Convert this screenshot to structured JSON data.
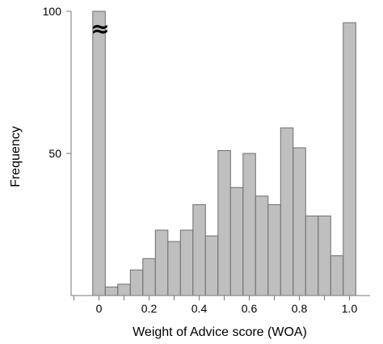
{
  "chart_data": {
    "type": "bar",
    "title": "",
    "xlabel": "Weight of Advice score (WOA)",
    "ylabel": "Frequency",
    "x_ticks": [
      "0",
      "0.2",
      "0.4",
      "0.6",
      "0.8",
      "1.0"
    ],
    "y_ticks": [
      "50",
      "100"
    ],
    "ylim": [
      0,
      100
    ],
    "break_marker": "≈",
    "bin_width": 0.05,
    "bins": [
      {
        "x": 0.0,
        "value": 100,
        "truncated": true
      },
      {
        "x": 0.05,
        "value": 3
      },
      {
        "x": 0.1,
        "value": 4
      },
      {
        "x": 0.15,
        "value": 9
      },
      {
        "x": 0.2,
        "value": 13
      },
      {
        "x": 0.25,
        "value": 23
      },
      {
        "x": 0.3,
        "value": 19
      },
      {
        "x": 0.35,
        "value": 23
      },
      {
        "x": 0.4,
        "value": 32
      },
      {
        "x": 0.45,
        "value": 21
      },
      {
        "x": 0.5,
        "value": 51
      },
      {
        "x": 0.55,
        "value": 38
      },
      {
        "x": 0.6,
        "value": 50
      },
      {
        "x": 0.65,
        "value": 35
      },
      {
        "x": 0.7,
        "value": 32
      },
      {
        "x": 0.75,
        "value": 59
      },
      {
        "x": 0.8,
        "value": 52
      },
      {
        "x": 0.85,
        "value": 28
      },
      {
        "x": 0.9,
        "value": 28
      },
      {
        "x": 0.95,
        "value": 14
      },
      {
        "x": 1.0,
        "value": 96
      }
    ],
    "grid": false,
    "colors": {
      "bar_fill": "#bfbfbf",
      "bar_stroke": "#6e6e6e"
    }
  }
}
